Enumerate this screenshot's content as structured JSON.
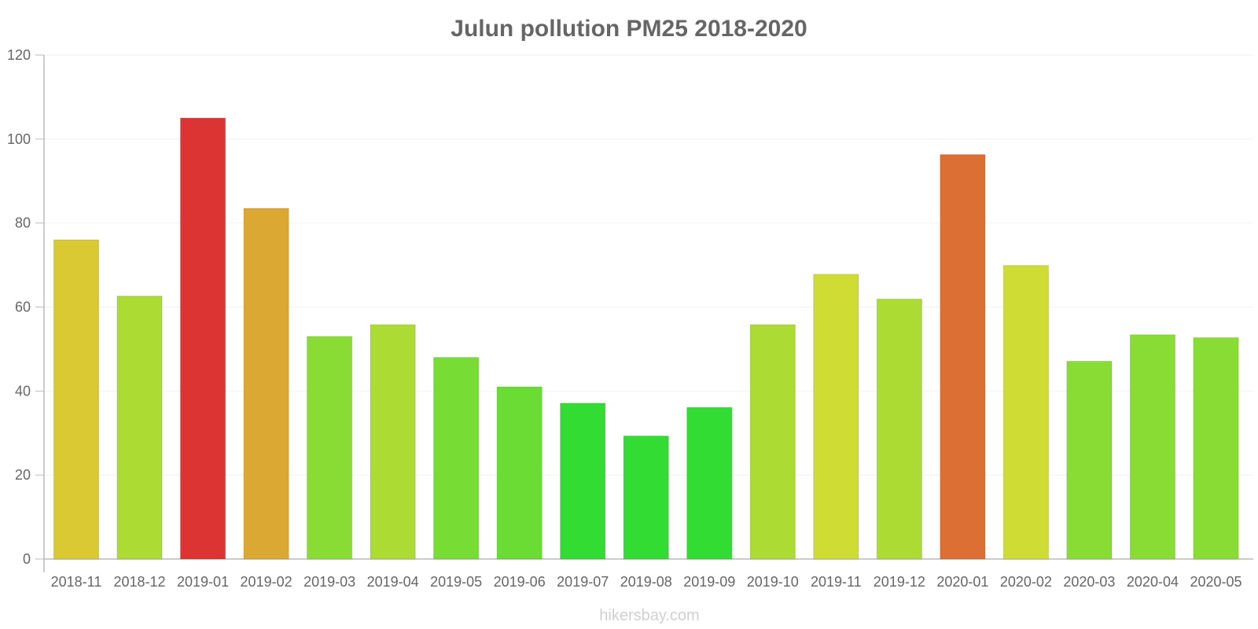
{
  "chart_data": {
    "type": "bar",
    "title": "Julun pollution PM25 2018-2020",
    "xlabel": "",
    "ylabel": "",
    "ylim": [
      0,
      120
    ],
    "yticks": [
      0,
      20,
      40,
      60,
      80,
      100,
      120
    ],
    "grid": true,
    "legend": "none",
    "categories": [
      "2018-11",
      "2018-12",
      "2019-01",
      "2019-02",
      "2019-03",
      "2019-04",
      "2019-05",
      "2019-06",
      "2019-07",
      "2019-08",
      "2019-09",
      "2019-10",
      "2019-11",
      "2019-12",
      "2020-01",
      "2020-02",
      "2020-03",
      "2020-04",
      "2020-05"
    ],
    "values": [
      76,
      62.6,
      105,
      83.5,
      53,
      55.8,
      48,
      41,
      37.1,
      29.3,
      36.1,
      55.8,
      67.8,
      61.9,
      96.3,
      69.9,
      47.1,
      53.4,
      52.7
    ],
    "colors": [
      "#dbc933",
      "#acdc33",
      "#db3433",
      "#dba833",
      "#89dc33",
      "#acdc33",
      "#77dc33",
      "#6adc33",
      "#33dc33",
      "#33dc33",
      "#33dc33",
      "#acdc33",
      "#cfdc33",
      "#acdc33",
      "#dc6f33",
      "#cfdc33",
      "#89dc33",
      "#89dc33",
      "#89dc33"
    ]
  },
  "watermark": "hikersbay.com"
}
